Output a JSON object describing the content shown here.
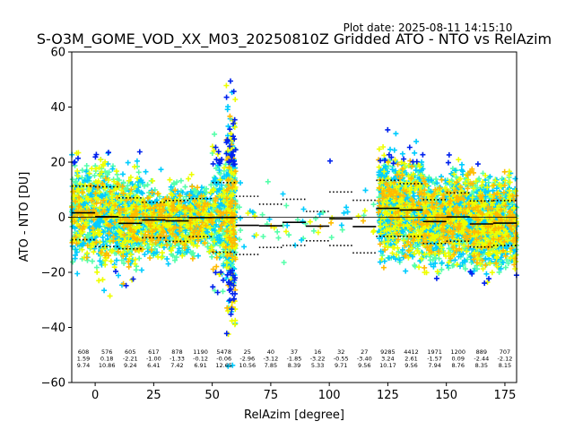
{
  "chart_data": {
    "type": "scatter",
    "title": "S-O3M_GOME_VOD_XX_M03_20250810Z Gridded ATO - NTO vs RelAzim",
    "plot_date": "Plot date: 2025-08-11 14:15:10",
    "xlabel": "RelAzim [degree]",
    "ylabel": "ATO - NTO [DU]",
    "xlim": [
      -10,
      180
    ],
    "ylim": [
      -60,
      60
    ],
    "xticks": [
      0,
      25,
      50,
      75,
      100,
      125,
      150,
      175
    ],
    "yticks": [
      -60,
      -40,
      -20,
      0,
      20,
      40,
      60
    ],
    "grid": false,
    "marker": "+",
    "colors": {
      "dark_blue": "#0022ee",
      "cyan": "#00ccff",
      "aquamarine": "#55ffaa",
      "yellow": "#eeff00",
      "orange": "#ffbb00"
    },
    "bin_width": 10,
    "bins": [
      {
        "center": -5,
        "count": "608",
        "mean": "1.59",
        "std": "9.74"
      },
      {
        "center": 5,
        "count": "576",
        "mean": "0.18",
        "std": "10.86"
      },
      {
        "center": 15,
        "count": "605",
        "mean": "-2.21",
        "std": "9.24"
      },
      {
        "center": 25,
        "count": "617",
        "mean": "-1.00",
        "std": "6.41"
      },
      {
        "center": 35,
        "count": "878",
        "mean": "-1.33",
        "std": "7.42"
      },
      {
        "center": 45,
        "count": "1190",
        "mean": "-0.12",
        "std": "6.91"
      },
      {
        "center": 55,
        "count": "5478",
        "mean": "-0.06",
        "std": "12.65"
      },
      {
        "center": 65,
        "count": "25",
        "mean": "-2.96",
        "std": "10.56"
      },
      {
        "center": 75,
        "count": "40",
        "mean": "-3.12",
        "std": "7.85"
      },
      {
        "center": 85,
        "count": "37",
        "mean": "-1.85",
        "std": "8.39"
      },
      {
        "center": 95,
        "count": "16",
        "mean": "-3.22",
        "std": "5.33"
      },
      {
        "center": 105,
        "count": "32",
        "mean": "-0.55",
        "std": "9.71"
      },
      {
        "center": 115,
        "count": "27",
        "mean": "-3.40",
        "std": "9.56"
      },
      {
        "center": 125,
        "count": "9285",
        "mean": "3.24",
        "std": "10.17"
      },
      {
        "center": 135,
        "count": "4412",
        "mean": "2.61",
        "std": "9.56"
      },
      {
        "center": 145,
        "count": "1971",
        "mean": "-1.57",
        "std": "7.94"
      },
      {
        "center": 155,
        "count": "1200",
        "mean": "0.09",
        "std": "8.76"
      },
      {
        "center": 165,
        "count": "889",
        "mean": "-2.44",
        "std": "8.35"
      },
      {
        "center": 175,
        "count": "707",
        "mean": "-2.12",
        "std": "8.15"
      }
    ]
  }
}
